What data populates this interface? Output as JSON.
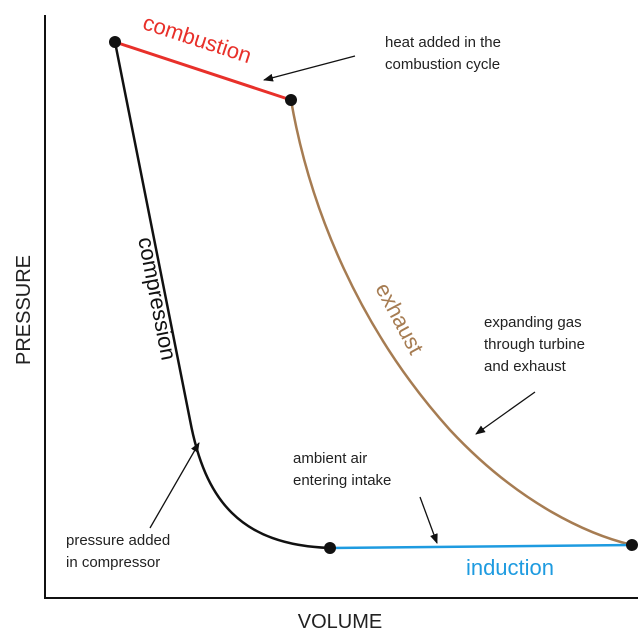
{
  "axes": {
    "y_label": "PRESSURE",
    "x_label": "VOLUME"
  },
  "curves": {
    "combustion": "combustion",
    "exhaust": "exhaust",
    "compression": "compression",
    "induction": "induction"
  },
  "annotations": [
    {
      "lines": [
        "heat added in the",
        "combustion cycle"
      ]
    },
    {
      "lines": [
        "expanding gas",
        "through turbine",
        "and exhaust"
      ]
    },
    {
      "lines": [
        "ambient air",
        "entering intake"
      ]
    },
    {
      "lines": [
        "pressure added",
        "in compressor"
      ]
    }
  ]
}
